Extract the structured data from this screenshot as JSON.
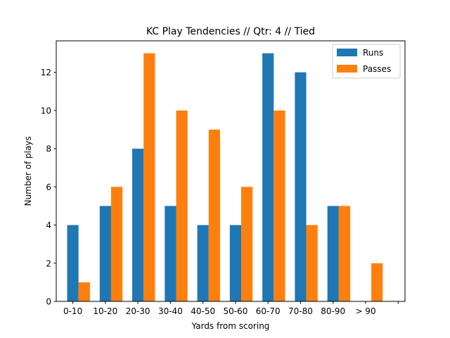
{
  "chart_data": {
    "type": "bar",
    "title": "KC Play Tendencies // Qtr: 4 // Tied",
    "xlabel": "Yards from scoring",
    "ylabel": "Number of plays",
    "categories": [
      "0-10",
      "10-20",
      "20-30",
      "30-40",
      "40-50",
      "50-60",
      "60-70",
      "70-80",
      "80-90",
      "> 90",
      ""
    ],
    "series": [
      {
        "name": "Runs",
        "color": "#1f77b4",
        "values": [
          4,
          5,
          8,
          5,
          4,
          4,
          13,
          12,
          5,
          0,
          0
        ]
      },
      {
        "name": "Passes",
        "color": "#ff7f0e",
        "values": [
          1,
          6,
          13,
          10,
          9,
          6,
          10,
          4,
          5,
          2,
          0
        ]
      }
    ],
    "ylim": [
      0,
      13.65
    ],
    "yticks": [
      0,
      2,
      4,
      6,
      8,
      10,
      12
    ],
    "grid": false,
    "legend_position": "top-right"
  }
}
